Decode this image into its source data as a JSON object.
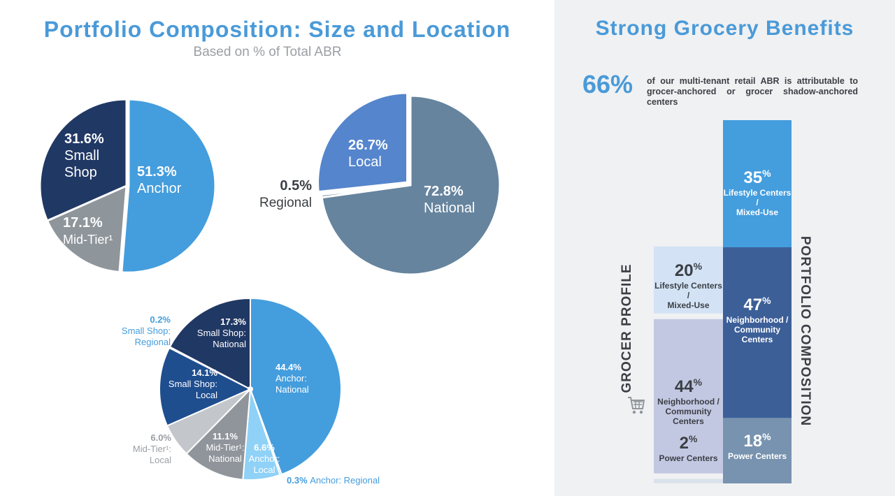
{
  "left_panel": {
    "title": "Portfolio Composition: Size and Location",
    "subtitle": "Based on % of Total ABR"
  },
  "right_panel": {
    "title": "Strong Grocery Benefits",
    "stat_value": "66%",
    "stat_text": "of our multi-tenant retail ABR is attributable to grocer-anchored or grocer shadow-anchored centers",
    "grocer_label": "GROCER PROFILE",
    "portfolio_label": "PORTFOLIO COMPOSITION"
  },
  "colors": {
    "accent": "#4a9ad8",
    "navy": "#203864",
    "anchor_blue": "#449ddd",
    "gray": "#8e959b",
    "local_blue": "#5585cc",
    "slate": "#66849e",
    "background_right": "#f0f1f3"
  },
  "chart_data": [
    {
      "type": "pie",
      "name": "Size",
      "slices": [
        {
          "label": "Anchor",
          "value": 51.3,
          "display": "51.3%",
          "color": "#449ddd",
          "text_color": "#ffffff"
        },
        {
          "label": "Mid-Tier¹",
          "value": 17.1,
          "display": "17.1%",
          "color": "#8e959b",
          "text_color": "#ffffff"
        },
        {
          "label": "Small Shop",
          "value": 31.6,
          "display": "31.6%",
          "color": "#203864",
          "text_color": "#ffffff"
        }
      ]
    },
    {
      "type": "pie",
      "name": "Location",
      "slices": [
        {
          "label": "National",
          "value": 72.8,
          "display": "72.8%",
          "color": "#66849e",
          "text_color": "#ffffff"
        },
        {
          "label": "Regional",
          "value": 0.5,
          "display": "0.5%",
          "color": "#66849e",
          "text_color": "#3b3f45"
        },
        {
          "label": "Local",
          "value": 26.7,
          "display": "26.7%",
          "color": "#5585cc",
          "text_color": "#ffffff"
        }
      ]
    },
    {
      "type": "pie",
      "name": "Size and Location",
      "slices": [
        {
          "label": "Anchor: National",
          "value": 44.4,
          "display": "44.4%",
          "color": "#449ddd",
          "text_color": "#ffffff"
        },
        {
          "label": "Anchor: Regional",
          "value": 0.3,
          "display": "0.3%",
          "color": "#449ddd",
          "text_color": "#449ddd"
        },
        {
          "label": "Anchor: Local",
          "value": 6.6,
          "display": "6.6%",
          "color": "#8fd1f7",
          "text_color": "#ffffff"
        },
        {
          "label": "Mid-Tier¹: National",
          "value": 11.1,
          "display": "11.1%",
          "color": "#8f959b",
          "text_color": "#ffffff"
        },
        {
          "label": "Mid-Tier¹: Local",
          "value": 6.0,
          "display": "6.0%",
          "color": "#c3c6ca",
          "text_color": "#9a9fa5"
        },
        {
          "label": "Small Shop: Local",
          "value": 14.1,
          "display": "14.1%",
          "color": "#1f4e8f",
          "text_color": "#ffffff"
        },
        {
          "label": "Small Shop: Regional",
          "value": 0.2,
          "display": "0.2%",
          "color": "#203864",
          "text_color": "#449ddd"
        },
        {
          "label": "Small Shop: National",
          "value": 17.3,
          "display": "17.3%",
          "color": "#203864",
          "text_color": "#ffffff"
        }
      ]
    },
    {
      "type": "bar",
      "name": "Grocer Profile vs Portfolio Composition",
      "categories": [
        "Lifestyle Centers / Mixed-Use",
        "Neighborhood / Community Centers",
        "Power Centers"
      ],
      "series": [
        {
          "name": "GROCER PROFILE",
          "values": [
            20,
            44,
            2
          ],
          "display": [
            "20",
            "44",
            "2"
          ],
          "labels": [
            "Lifestyle Centers / Mixed-Use",
            "Neighborhood / Community Centers",
            "Power Centers"
          ]
        },
        {
          "name": "PORTFOLIO COMPOSITION",
          "values": [
            35,
            47,
            18
          ],
          "display": [
            "35",
            "47",
            "18"
          ],
          "labels": [
            "Lifestyle Centers / Mixed-Use",
            "Neighborhood / Community Centers",
            "Power Centers"
          ]
        }
      ],
      "unit": "%"
    }
  ]
}
